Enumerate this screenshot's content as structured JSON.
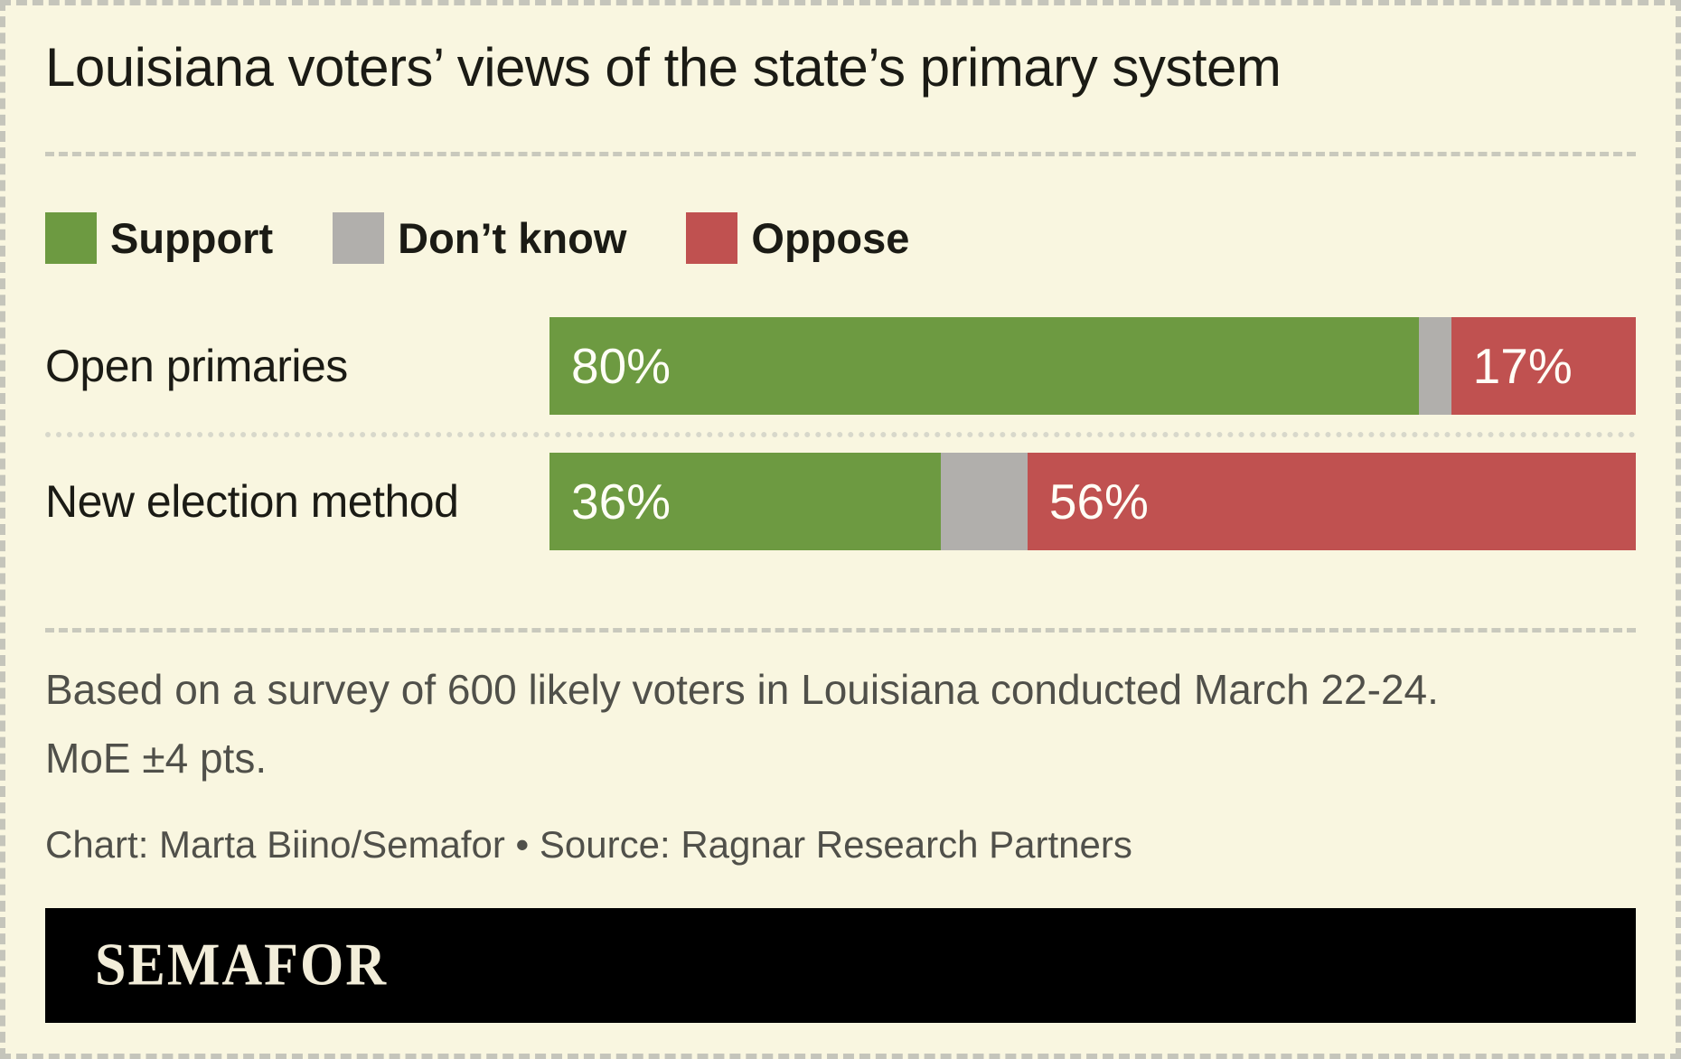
{
  "title": "Louisiana voters’ views of the state’s primary system",
  "legend": [
    {
      "label": "Support",
      "color": "#6d9a41"
    },
    {
      "label": "Don’t know",
      "color": "#b1afac"
    },
    {
      "label": "Oppose",
      "color": "#c05150"
    }
  ],
  "chart_data": {
    "type": "bar",
    "orientation": "horizontal",
    "stacked": true,
    "title": "Louisiana voters’ views of the state’s primary system",
    "categories": [
      "Open primaries",
      "New election method"
    ],
    "series": [
      {
        "name": "Support",
        "color": "#6d9a41",
        "values": [
          80,
          36
        ]
      },
      {
        "name": "Don’t know",
        "color": "#b1afac",
        "values": [
          3,
          8
        ]
      },
      {
        "name": "Oppose",
        "color": "#c05150",
        "values": [
          17,
          56
        ]
      }
    ],
    "value_labels": [
      [
        "80%",
        "",
        "17%"
      ],
      [
        "36%",
        "",
        "56%"
      ]
    ],
    "xlim": [
      0,
      100
    ],
    "grid": false,
    "legend_position": "top"
  },
  "footnote": {
    "line1": "Based on a survey of 600 likely voters in Louisiana conducted March 22-24.",
    "line2": "MoE ±4 pts."
  },
  "credit": "Chart: Marta Biino/Semafor • Source: Ragnar Research Partners",
  "logo": "SEMAFOR",
  "colors": {
    "background": "#f9f6e0",
    "support": "#6d9a41",
    "dont_know": "#b1afac",
    "oppose": "#c05150",
    "text": "#1b1b15",
    "muted_text": "#50504a",
    "divider": "#c9c9bd",
    "logo_bar": "#000000",
    "logo_text": "#f2edd9"
  }
}
